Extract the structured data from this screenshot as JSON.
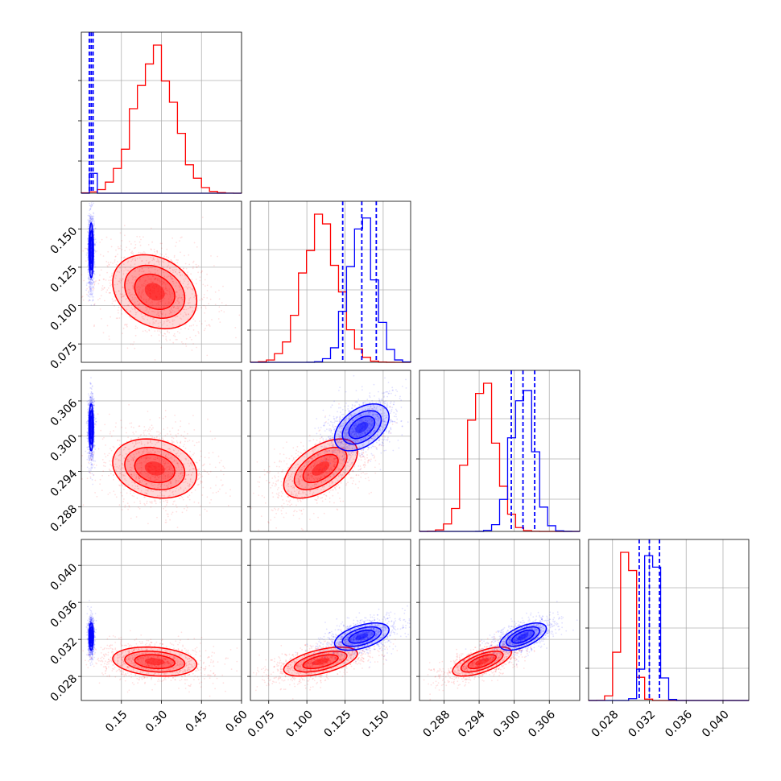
{
  "chart_data": {
    "type": "corner",
    "grid": true,
    "params": [
      {
        "range": [
          0.0,
          0.6
        ],
        "ticks": [
          0.15,
          0.3,
          0.45,
          0.6
        ],
        "tick_labels": [
          "0.15",
          "0.30",
          "0.45",
          "0.60"
        ]
      },
      {
        "range": [
          0.063,
          0.168
        ],
        "ticks": [
          0.075,
          0.1,
          0.125,
          0.15
        ],
        "tick_labels": [
          "0.075",
          "0.100",
          "0.125",
          "0.150"
        ]
      },
      {
        "range": [
          0.2838,
          0.3112
        ],
        "ticks": [
          0.288,
          0.294,
          0.3,
          0.306
        ],
        "tick_labels": [
          "0.288",
          "0.294",
          "0.300",
          "0.306"
        ]
      },
      {
        "range": [
          0.0254,
          0.0428
        ],
        "ticks": [
          0.028,
          0.032,
          0.036,
          0.04
        ],
        "tick_labels": [
          "0.028",
          "0.032",
          "0.036",
          "0.040"
        ]
      }
    ],
    "series": [
      {
        "color": "#ff0000",
        "mean": [
          0.275,
          0.109,
          0.2945,
          0.0296
        ],
        "sd": [
          0.075,
          0.0115,
          0.0024,
          0.00075
        ],
        "corr": {
          "0-1": -0.25,
          "0-2": -0.2,
          "0-3": -0.2,
          "1-2": 0.55,
          "1-3": 0.55,
          "2-3": 0.65
        },
        "quantile_lines": false
      },
      {
        "color": "#0000ff",
        "mean": [
          0.037,
          0.136,
          0.3015,
          0.0323
        ],
        "sd": [
          0.004,
          0.0085,
          0.0019,
          0.0007
        ],
        "corr": {
          "0-1": 0.0,
          "0-2": 0.0,
          "0-3": 0.0,
          "1-2": 0.45,
          "1-3": 0.5,
          "2-3": 0.6
        },
        "quantile_lines": true,
        "quantiles": [
          [
            0.03,
            0.037,
            0.044
          ],
          [
            0.1235,
            0.136,
            0.1455
          ],
          [
            0.2995,
            0.3015,
            0.3035
          ],
          [
            0.0309,
            0.032,
            0.0331
          ]
        ]
      }
    ]
  }
}
